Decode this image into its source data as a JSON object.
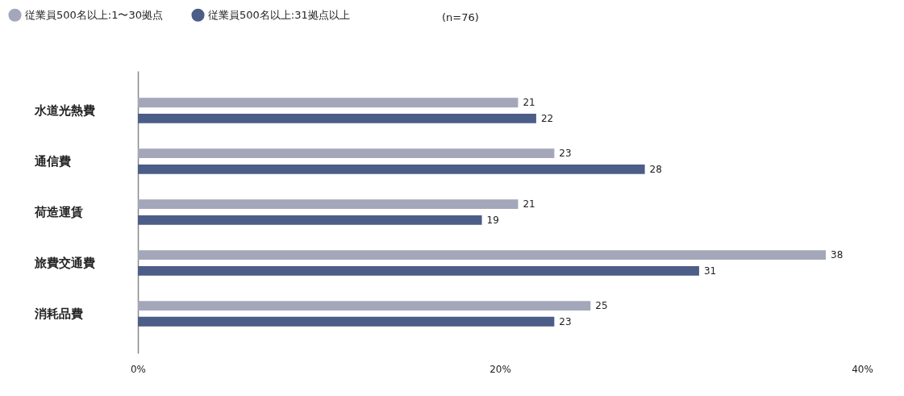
{
  "chart_data": {
    "type": "bar",
    "orientation": "horizontal",
    "categories": [
      "水道光熱費",
      "通信費",
      "荷造運賃",
      "旅費交通費",
      "消耗品費"
    ],
    "series": [
      {
        "name": "従業員500名以上:1〜30拠点",
        "color": "#a4a7ba",
        "values": [
          21,
          23,
          21,
          38,
          25
        ]
      },
      {
        "name": "従業員500名以上:31拠点以上",
        "color": "#4c5d87",
        "values": [
          22,
          28,
          19,
          31,
          23
        ]
      }
    ],
    "xlim": [
      0,
      40
    ],
    "xticks": [
      {
        "value": 0,
        "label": "0%"
      },
      {
        "value": 20,
        "label": "20%"
      },
      {
        "value": 40,
        "label": "40%"
      }
    ],
    "data_labels": true,
    "grid": false,
    "legend": "top left",
    "annotations": [
      "(n=76)"
    ]
  }
}
